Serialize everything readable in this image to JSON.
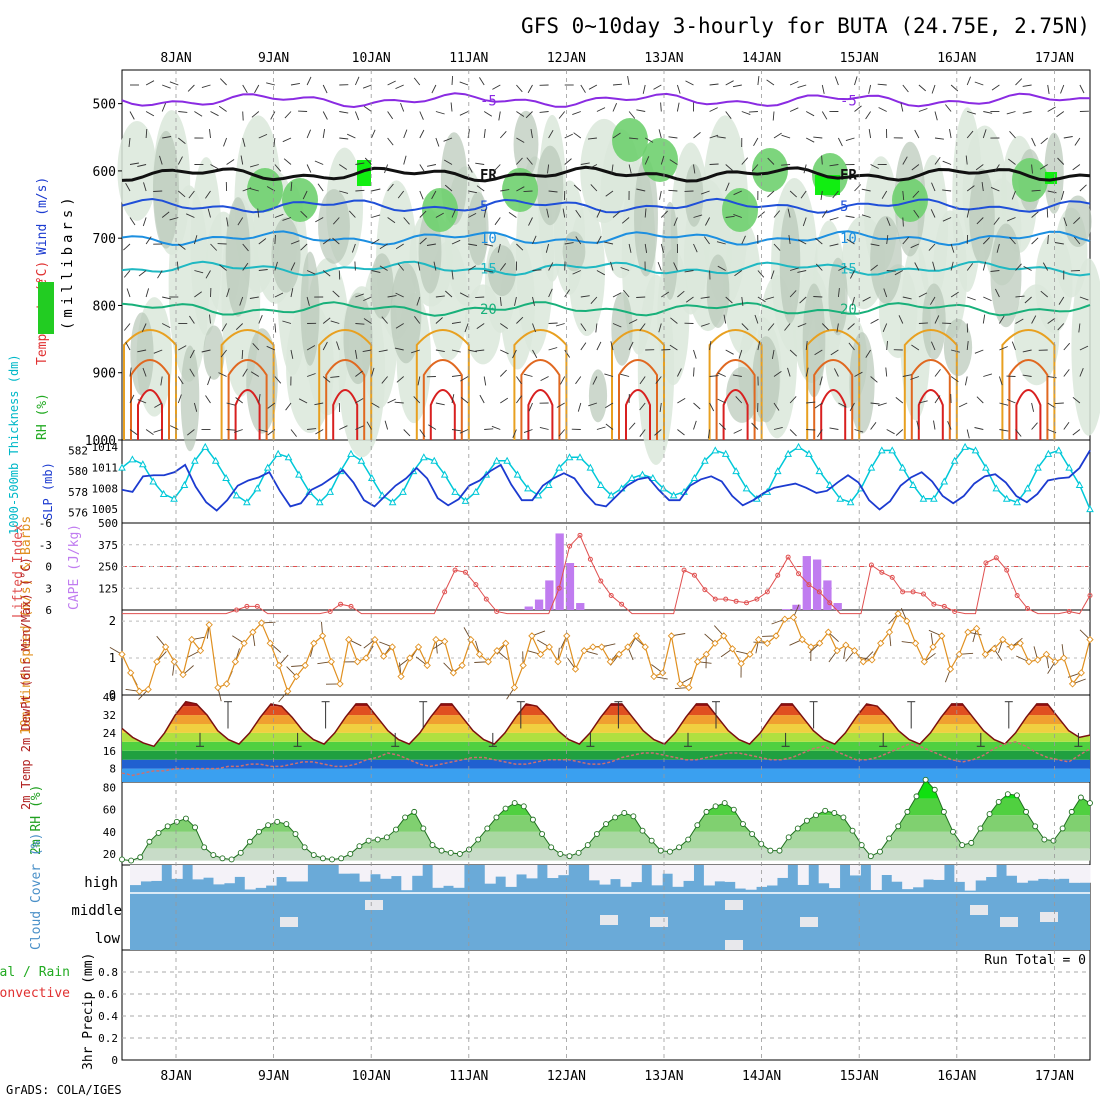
{
  "header": {
    "title": "GFS 0~10day 3-hourly for BUTA (24.75E, 2.75N)",
    "credit": "GrADS: COLA/IGES"
  },
  "chart_data": [
    {
      "type": "heatmap",
      "panel": "upper-air",
      "ylabel_parts": [
        "RH (%)",
        "Temperature",
        "(°C)",
        "Wind (m/s)"
      ],
      "ylabel_units": "(millibars)",
      "x": [
        "8JAN",
        "9JAN",
        "10JAN",
        "11JAN",
        "12JAN",
        "13JAN",
        "14JAN",
        "15JAN",
        "16JAN",
        "17JAN"
      ],
      "y_ticks": [
        "500",
        "600",
        "700",
        "800",
        "900",
        "1000"
      ],
      "ylim": [
        450,
        1000
      ],
      "isotherms": [
        {
          "label": "-5",
          "level": 495,
          "color": "#8a2be2"
        },
        {
          "label": "FR",
          "level": 605,
          "color": "#111111"
        },
        {
          "label": "5",
          "level": 652,
          "color": "#1f4fd8"
        },
        {
          "label": "10",
          "level": 700,
          "color": "#1c8fe0"
        },
        {
          "label": "15",
          "level": 745,
          "color": "#1fb8c2"
        },
        {
          "label": "20",
          "level": 805,
          "color": "#18b07a"
        }
      ],
      "surface_isotherm_colors": [
        "#e8a020",
        "#e06820",
        "#d82020"
      ]
    },
    {
      "type": "line",
      "panel": "thickness-slp",
      "ylabel_left": "1000-500mb Thickness (dm)",
      "ylabel_right": "SLP (mb)",
      "y_ticks_thickness": [
        "582",
        "580",
        "578",
        "576"
      ],
      "y_ticks_slp": [
        "1014",
        "1011",
        "1008",
        "1005"
      ],
      "thickness_ylim": [
        575,
        583
      ],
      "series": [
        {
          "name": "SLP",
          "color": "#00c8d8",
          "values": [
            1011,
            1012.2,
            1011.5,
            1009,
            1007.2,
            1006.5,
            1008.5,
            1012,
            1014,
            1012,
            1009.5,
            1007,
            1006,
            1008,
            1011,
            1013,
            1012.5,
            1010,
            1007.5,
            1006,
            1007.5,
            1010.5,
            1013,
            1012,
            1009.5,
            1007,
            1006,
            1007.5,
            1010.5,
            1012.5,
            1012,
            1010,
            1007.5,
            1006.2,
            1007.5,
            1010,
            1012,
            1012,
            1010,
            1008,
            1007,
            1008.5,
            1011,
            1012.5,
            1012.5,
            1011,
            1008.5,
            1007,
            1008,
            1009.5,
            1010,
            1009.5,
            1008,
            1007,
            1007.5,
            1009.5,
            1012,
            1013.5,
            1013,
            1010.5,
            1008,
            1006.5,
            1007.5,
            1010.5,
            1013,
            1014,
            1013,
            1010.5,
            1008.5,
            1006.5,
            1006,
            1008,
            1011,
            1013.5,
            1013.5,
            1011,
            1008.5,
            1006.5,
            1006.5,
            1009,
            1012,
            1014,
            1013.5,
            1011,
            1008,
            1006.5,
            1006,
            1008,
            1011,
            1013,
            1013.5,
            1011,
            1008.5,
            1005
          ]
        },
        {
          "name": "Thickness",
          "color": "#1c3bd0",
          "values": [
            578.2,
            578,
            579.5,
            579.6,
            579.6,
            579.9,
            580.6,
            578.5,
            577,
            576.2,
            577.2,
            578.6,
            579.1,
            579.4,
            579.9,
            578.1,
            576.6,
            576.9,
            578.2,
            578.7,
            579.4,
            580.1,
            578.9,
            577.2,
            576.6,
            577.6,
            578.6,
            579.3,
            580.3,
            579.3,
            577.4,
            576.7,
            577.3,
            578.6,
            579.1,
            580,
            580.6,
            578.7,
            577.2,
            577.2,
            578.6,
            579.3,
            579.8,
            579.3,
            577.9,
            576.8,
            576.6,
            577.6,
            578.6,
            579.2,
            579.4,
            578.2,
            577.2,
            577.2,
            578.6,
            579.2,
            579.5,
            579,
            577.6,
            576.7,
            577.2,
            577.9,
            578.4,
            578.6,
            578.8,
            578.4,
            577.9,
            578.1,
            578.9,
            579.6,
            578.9,
            577.2,
            576.3,
            577.1,
            578.6,
            579.4,
            579.9,
            579,
            577.6,
            576.9,
            577.6,
            578.8,
            579.5,
            579.7,
            578.9,
            577.6,
            577,
            577.8,
            579.1,
            579.3,
            579.4,
            580.3,
            582
          ]
        }
      ]
    },
    {
      "type": "bar",
      "panel": "cape-lifted-index",
      "ylabel_left": "Lifted Index",
      "ylabel_right": "CAPE (J/kg)",
      "y_ticks_li": [
        "-6",
        "-3",
        "0",
        "3",
        "6"
      ],
      "y_ticks_cape": [
        "500",
        "375",
        "250",
        "125"
      ],
      "cape_ylim": [
        0,
        500
      ],
      "li_ylim": [
        6,
        -6
      ],
      "series": [
        {
          "name": "CAPE",
          "color": "#c07cf0",
          "values": [
            0,
            0,
            0,
            0,
            0,
            0,
            0,
            0,
            0,
            0,
            0,
            0,
            0,
            0,
            0,
            0,
            0,
            0,
            0,
            0,
            0,
            0,
            0,
            0,
            0,
            0,
            0,
            0,
            0,
            0,
            0,
            0,
            0,
            0,
            0,
            0,
            0,
            0,
            0,
            20,
            60,
            170,
            440,
            270,
            40,
            0,
            0,
            0,
            0,
            0,
            0,
            0,
            0,
            0,
            0,
            0,
            0,
            0,
            0,
            0,
            0,
            0,
            0,
            0,
            5,
            30,
            310,
            290,
            170,
            40,
            0,
            0,
            0,
            0,
            0,
            0,
            0,
            0,
            0,
            0,
            0,
            0,
            0,
            0,
            0,
            0,
            0,
            0,
            0,
            0,
            0,
            0,
            0,
            0
          ]
        },
        {
          "name": "Lifted Index",
          "color": "#e05050",
          "values": [
            7,
            7,
            7,
            7,
            7,
            7,
            7,
            7,
            7,
            7,
            7,
            6,
            5.5,
            5.5,
            7,
            7,
            7,
            7,
            7,
            7,
            6.2,
            5.2,
            5.5,
            7,
            7,
            7,
            7,
            7,
            7,
            7,
            7,
            3.5,
            0.5,
            0.8,
            2.5,
            4.5,
            6.2,
            7,
            7,
            7,
            7,
            7,
            3,
            -2.8,
            -4.3,
            -1,
            2,
            4,
            5.2,
            6.5,
            7,
            7,
            7,
            7,
            0.5,
            1.2,
            3.2,
            4.5,
            4.5,
            4.8,
            5,
            4.5,
            3.5,
            1.2,
            -1.3,
            1,
            2.5,
            3.5,
            5,
            6.5,
            7,
            7,
            -0.2,
            0.8,
            1.5,
            3.5,
            3.5,
            3.8,
            5.2,
            5.5,
            6.2,
            7,
            7,
            -0.5,
            -1.2,
            0.5,
            4,
            5.8,
            6.8,
            7,
            7,
            6.2,
            6.8,
            4
          ]
        }
      ]
    },
    {
      "type": "line",
      "panel": "10m-wind",
      "ylabel": "10m Wind Speed (m/s) & Barbs",
      "y_ticks": [
        "0",
        "1",
        "2"
      ],
      "ylim": [
        0,
        2.3
      ],
      "series": [
        {
          "name": "10m Wind Speed",
          "color": "#e09020",
          "values": [
            1.1,
            0.6,
            0.1,
            0.15,
            0.9,
            1.3,
            0.9,
            0.55,
            1.5,
            1.2,
            1.9,
            0.2,
            0.3,
            0.9,
            1.4,
            1.7,
            1.95,
            1.4,
            0.8,
            0.1,
            0.5,
            0.8,
            1.4,
            1.6,
            0.9,
            0.3,
            1.5,
            0.9,
            1.0,
            1.5,
            1.05,
            1.3,
            0.5,
            1.0,
            1.3,
            0.8,
            1.5,
            1.45,
            0.6,
            0.8,
            1.5,
            1.1,
            0.9,
            1.2,
            1.4,
            0.2,
            0.8,
            1.6,
            1.1,
            1.3,
            0.9,
            1.6,
            0.7,
            1.2,
            1.3,
            1.3,
            0.9,
            1.1,
            1.3,
            1.6,
            1.3,
            0.5,
            0.6,
            1.6,
            0.3,
            0.2,
            0.9,
            1.1,
            1.4,
            1.6,
            1.25,
            0.85,
            1.1,
            1.5,
            1.4,
            1.6,
            2.05,
            2.1,
            1.5,
            1.3,
            1.4,
            1.7,
            1.2,
            1.35,
            1.2,
            0.9,
            0.95,
            1.4,
            1.7,
            2.2,
            2.0,
            1.4,
            0.9,
            1.3,
            1.6,
            0.7,
            1.1,
            1.7,
            1.8,
            1.1,
            1.25,
            1.5,
            1.3,
            1.4,
            0.9,
            0.95,
            1.1,
            0.9,
            1.0,
            0.3,
            0.6,
            1.5
          ]
        }
      ]
    },
    {
      "type": "area",
      "panel": "2m-temp",
      "ylabel": "2m Temp 2m DewPt (6hr Min/Max) (°C)",
      "y_ticks": [
        "8",
        "16",
        "24",
        "32",
        "40"
      ],
      "ylim": [
        2,
        41
      ],
      "series": [
        {
          "name": "2m Temp",
          "color": "#7a1010",
          "values": [
            26,
            22,
            19.5,
            18,
            24,
            32,
            38,
            37,
            32,
            25,
            21,
            19,
            24,
            31,
            37,
            36,
            31,
            25,
            21,
            19,
            24,
            31,
            37,
            37,
            31,
            25,
            21,
            19,
            24,
            31,
            37,
            37,
            31,
            25,
            21,
            19,
            24,
            31,
            37,
            36,
            31,
            25,
            21,
            19,
            24,
            31,
            37,
            37,
            31,
            25,
            21,
            19,
            24,
            31,
            37,
            37,
            31,
            25,
            21,
            19,
            24,
            31,
            37,
            37,
            31,
            25,
            21,
            19,
            24,
            31,
            37,
            36,
            31,
            25,
            21,
            19,
            24,
            31,
            37,
            37,
            31,
            25,
            21,
            19,
            24,
            31,
            37,
            37,
            31,
            25,
            22,
            23
          ]
        },
        {
          "name": "2m DewPt",
          "color": "#cc7070",
          "values": [
            6,
            5,
            6,
            7,
            7,
            8,
            8,
            8,
            8,
            8,
            9,
            9,
            10,
            10,
            9,
            9,
            10,
            11,
            11,
            10,
            9,
            9,
            10,
            12,
            13,
            15,
            14,
            12,
            10,
            9,
            10,
            11,
            12,
            13,
            13,
            12,
            11,
            10,
            10,
            11,
            12,
            12,
            12,
            11,
            10,
            10,
            11,
            13,
            14,
            15,
            15,
            14,
            13,
            12,
            12,
            13,
            14,
            15,
            15,
            14,
            13,
            12,
            12,
            13,
            15,
            17,
            18,
            16,
            14,
            12,
            12,
            13,
            15,
            17,
            19,
            18,
            16,
            14,
            12,
            11,
            12,
            14,
            17,
            19,
            20,
            18,
            15,
            13,
            12,
            11,
            14,
            17
          ]
        }
      ]
    },
    {
      "type": "area",
      "panel": "2m-rh",
      "ylabel": "2m RH (%)",
      "y_ticks": [
        "20",
        "40",
        "60",
        "80"
      ],
      "ylim": [
        10,
        85
      ],
      "series": [
        {
          "name": "2m RH",
          "color": "#20a020",
          "values": [
            15,
            14,
            17,
            31,
            39,
            45,
            49,
            52,
            44,
            26,
            19,
            16,
            15,
            21,
            31,
            40,
            46,
            49,
            47,
            38,
            26,
            19,
            16,
            15,
            16,
            20,
            27,
            32,
            33,
            35,
            42,
            53,
            58,
            43,
            28,
            23,
            21,
            20,
            24,
            33,
            43,
            53,
            61,
            66,
            63,
            51,
            38,
            26,
            20,
            18,
            21,
            28,
            38,
            47,
            53,
            57,
            54,
            41,
            32,
            23,
            22,
            26,
            33,
            46,
            58,
            63,
            66,
            60,
            47,
            38,
            29,
            23,
            23,
            35,
            43,
            50,
            55,
            59,
            57,
            53,
            41,
            28,
            18,
            22,
            34,
            45,
            58,
            72,
            87,
            78,
            58,
            40,
            28,
            30,
            43,
            56,
            67,
            74,
            73,
            58,
            45,
            33,
            32,
            43,
            58,
            71,
            66
          ]
        }
      ]
    },
    {
      "type": "heatmap",
      "panel": "cloud-cover",
      "ylabel": "Cloud Cover (%)",
      "rows": [
        "high",
        "middle",
        "low"
      ]
    },
    {
      "type": "bar",
      "panel": "precip",
      "ylabel_legend": [
        "Total / Rain",
        "Convective"
      ],
      "ylabel": "3hr Precip (mm)",
      "y_ticks": [
        "0",
        "0.2",
        "0.4",
        "0.6",
        "0.8"
      ],
      "ylim": [
        0,
        1
      ],
      "run_total": "Run Total = 0",
      "values": []
    }
  ]
}
